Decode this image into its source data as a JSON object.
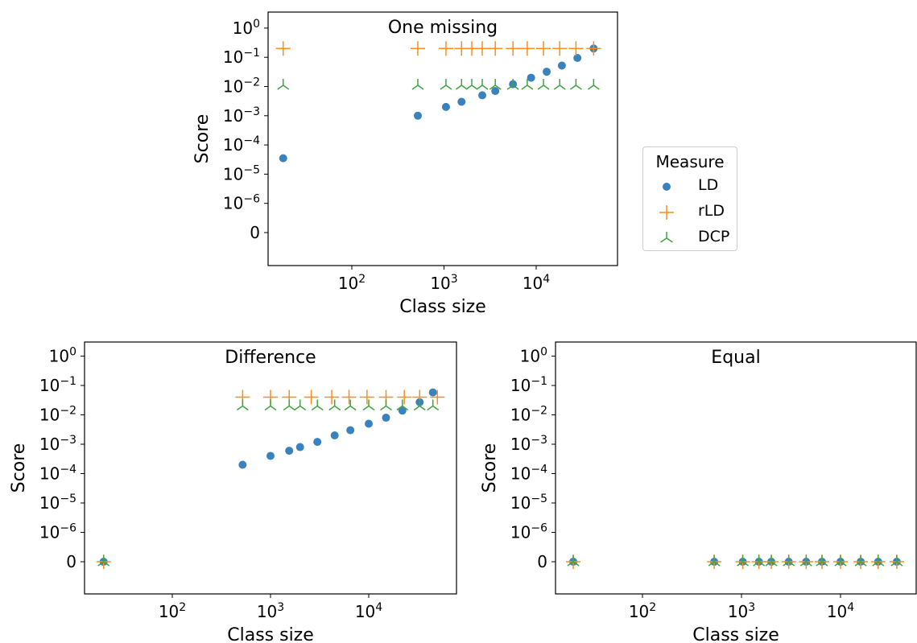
{
  "chart_data": [
    {
      "type": "scatter",
      "title": "One missing",
      "xlabel": "Class size",
      "ylabel": "Score",
      "xscale": "log",
      "yscale": "symlog",
      "xlim": [
        14,
        60000
      ],
      "y_ticks": [
        "0",
        "10^-6",
        "10^-5",
        "10^-4",
        "10^-3",
        "10^-2",
        "10^-1",
        "10^0"
      ],
      "x_ticks": [
        "10^2",
        "10^3",
        "10^4"
      ],
      "grid": false,
      "legend_position": "outside-right",
      "series": [
        {
          "name": "LD",
          "x": [
            18,
            520,
            1050,
            1550,
            2600,
            3600,
            5600,
            8800,
            13000,
            19000,
            28000,
            42000
          ],
          "y": [
            3.5e-05,
            0.001,
            0.002,
            0.003,
            0.005,
            0.007,
            0.012,
            0.02,
            0.032,
            0.052,
            0.095,
            0.2
          ]
        },
        {
          "name": "rLD",
          "x": [
            18,
            520,
            1050,
            1550,
            2000,
            2600,
            3600,
            5600,
            8000,
            12000,
            18000,
            27000,
            42000
          ],
          "y": [
            0.2,
            0.2,
            0.2,
            0.2,
            0.2,
            0.2,
            0.2,
            0.2,
            0.2,
            0.2,
            0.2,
            0.2,
            0.2
          ]
        },
        {
          "name": "DCP",
          "x": [
            18,
            520,
            1050,
            1550,
            2000,
            2600,
            3600,
            5600,
            8000,
            12000,
            18000,
            27000,
            42000
          ],
          "y": [
            0.011,
            0.011,
            0.011,
            0.011,
            0.011,
            0.011,
            0.011,
            0.011,
            0.011,
            0.011,
            0.011,
            0.011,
            0.011
          ]
        }
      ]
    },
    {
      "type": "scatter",
      "title": "Difference",
      "xlabel": "Class size",
      "ylabel": "Score",
      "xscale": "log",
      "yscale": "symlog",
      "xlim": [
        14,
        60000
      ],
      "y_ticks": [
        "0",
        "10^-6",
        "10^-5",
        "10^-4",
        "10^-3",
        "10^-2",
        "10^-1",
        "10^0"
      ],
      "x_ticks": [
        "10^2",
        "10^3",
        "10^4"
      ],
      "grid": false,
      "series": [
        {
          "name": "LD",
          "x": [
            20,
            520,
            1000,
            1550,
            2000,
            3000,
            4500,
            6500,
            10000,
            15000,
            22000,
            33000,
            45000
          ],
          "y": [
            0,
            0.0002,
            0.0004,
            0.0006,
            0.0008,
            0.0012,
            0.002,
            0.003,
            0.005,
            0.008,
            0.014,
            0.027,
            0.058
          ]
        },
        {
          "name": "rLD",
          "x": [
            20,
            520,
            1000,
            1550,
            2600,
            4200,
            6300,
            9600,
            15000,
            23000,
            33000,
            50000
          ],
          "y": [
            0,
            0.04,
            0.04,
            0.04,
            0.04,
            0.04,
            0.04,
            0.04,
            0.04,
            0.04,
            0.04,
            0.04
          ]
        },
        {
          "name": "DCP",
          "x": [
            20,
            520,
            1000,
            1550,
            2000,
            3000,
            4500,
            6500,
            10000,
            15000,
            22000,
            33000,
            45000
          ],
          "y": [
            0,
            0.02,
            0.02,
            0.02,
            0.02,
            0.02,
            0.02,
            0.02,
            0.02,
            0.02,
            0.02,
            0.02,
            0.02
          ]
        }
      ]
    },
    {
      "type": "scatter",
      "title": "Equal",
      "xlabel": "Class size",
      "ylabel": "Score",
      "xscale": "log",
      "yscale": "symlog",
      "xlim": [
        14,
        60000
      ],
      "y_ticks": [
        "0",
        "10^-6",
        "10^-5",
        "10^-4",
        "10^-3",
        "10^-2",
        "10^-1",
        "10^0"
      ],
      "x_ticks": [
        "10^2",
        "10^3",
        "10^4"
      ],
      "grid": false,
      "series": [
        {
          "name": "LD",
          "x": [
            20,
            530,
            1030,
            1500,
            2000,
            3000,
            4500,
            6500,
            10000,
            16000,
            24000,
            37000
          ],
          "y": [
            0,
            0,
            0,
            0,
            0,
            0,
            0,
            0,
            0,
            0,
            0,
            0
          ]
        },
        {
          "name": "rLD",
          "x": [
            20,
            530,
            1030,
            1500,
            2000,
            3000,
            4500,
            6500,
            10000,
            16000,
            24000,
            37000
          ],
          "y": [
            0,
            0,
            0,
            0,
            0,
            0,
            0,
            0,
            0,
            0,
            0,
            0
          ]
        },
        {
          "name": "DCP",
          "x": [
            20,
            530,
            1030,
            1500,
            2000,
            3000,
            4500,
            6500,
            10000,
            16000,
            24000,
            37000
          ],
          "y": [
            0,
            0,
            0,
            0,
            0,
            0,
            0,
            0,
            0,
            0,
            0,
            0
          ]
        }
      ]
    }
  ],
  "legend": {
    "title": "Measure",
    "items": [
      {
        "name": "LD",
        "color": "#3a82be",
        "marker": "circle"
      },
      {
        "name": "rLD",
        "color": "#ff8c1a",
        "marker": "plus"
      },
      {
        "name": "DCP",
        "color": "#3fa63f",
        "marker": "tri-down"
      }
    ]
  }
}
